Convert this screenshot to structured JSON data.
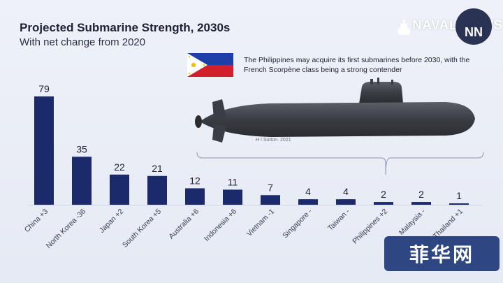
{
  "header": {
    "title": "Projected Submarine Strength, 2030s",
    "subtitle": "With net change from 2020"
  },
  "logo": {
    "text": "NAVAL NEWS",
    "badge": "NN",
    "icon": "ship-icon"
  },
  "annotation": {
    "text": "The Philippines may acquire its first submarines before 2030, with the French Scorpène class being a strong contender",
    "flag_icon": "philippines-flag-icon"
  },
  "illustration": {
    "icon": "submarine-icon",
    "credit": "H I Sutton. 2021"
  },
  "watermark": {
    "text": "菲华网"
  },
  "colors": {
    "bar": "#1b2a6b",
    "background": "#eef1f8",
    "text": "#1d2235"
  },
  "chart_data": {
    "type": "bar",
    "title": "Projected Submarine Strength, 2030s",
    "subtitle": "With net change from 2020",
    "categories": [
      "China +3",
      "North Korea -36",
      "Japan +2",
      "South Korea +5",
      "Australia +6",
      "Indonesia +6",
      "Vietnam -1",
      "Singapore -",
      "Taiwan -",
      "Philippines +2",
      "Malaysia -",
      "Thailand +1"
    ],
    "values": [
      79,
      35,
      22,
      21,
      12,
      11,
      7,
      4,
      4,
      2,
      2,
      1
    ],
    "ylim": [
      0,
      80
    ],
    "grid": false,
    "legend": "none",
    "xlabel": "",
    "ylabel": ""
  }
}
